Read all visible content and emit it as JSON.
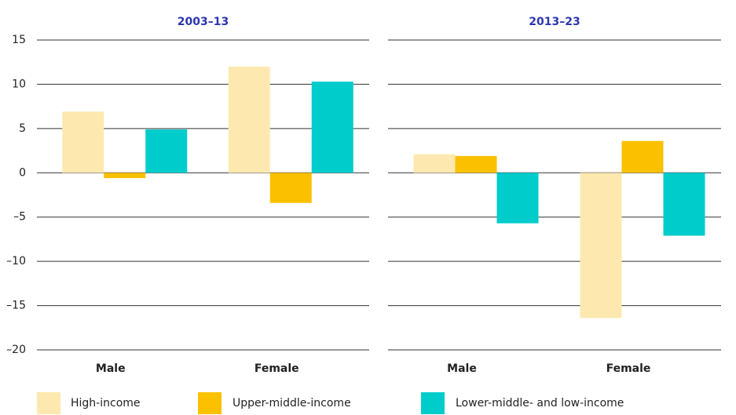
{
  "chart_data": [
    {
      "type": "bar",
      "title": "2003–13",
      "categories": [
        "Male",
        "Female"
      ],
      "series": [
        {
          "name": "High-income",
          "color": "#fde9b0",
          "values": [
            6.9,
            12.0
          ]
        },
        {
          "name": "Upper-middle-income",
          "color": "#fbc000",
          "values": [
            -0.6,
            -3.4
          ]
        },
        {
          "name": "Lower-middle- and low-income",
          "color": "#00cccc",
          "values": [
            4.9,
            10.3
          ]
        }
      ],
      "ylim": [
        -20,
        15
      ],
      "yticks": [
        {
          "value": -20,
          "label": "–20"
        },
        {
          "value": -15,
          "label": "–15"
        },
        {
          "value": -10,
          "label": "–10"
        },
        {
          "value": -5,
          "label": "–5"
        },
        0,
        5,
        10,
        15
      ],
      "grid": true
    },
    {
      "type": "bar",
      "title": "2013–23",
      "categories": [
        "Male",
        "Female"
      ],
      "series": [
        {
          "name": "High-income",
          "color": "#fde9b0",
          "values": [
            2.1,
            -16.4
          ]
        },
        {
          "name": "Upper-middle-income",
          "color": "#fbc000",
          "values": [
            1.9,
            3.6
          ]
        },
        {
          "name": "Lower-middle- and low-income",
          "color": "#00cccc",
          "values": [
            -5.7,
            -7.1
          ]
        }
      ],
      "ylim": [
        -20,
        15
      ],
      "yticks": [
        -20,
        -15,
        -10,
        -5,
        0,
        5,
        10,
        15
      ],
      "grid": true
    }
  ]
}
